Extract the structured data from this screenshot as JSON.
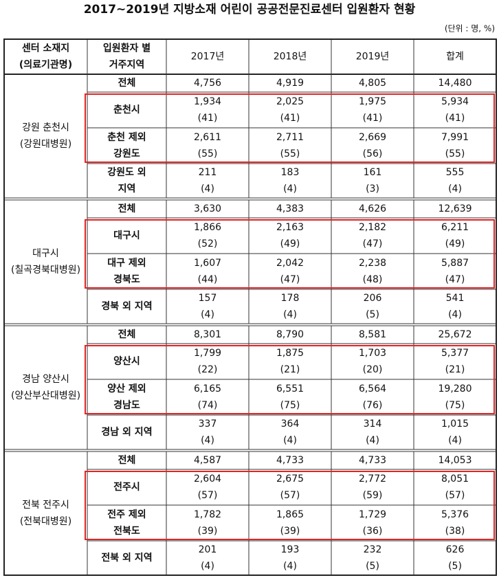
{
  "header": {
    "title": "2017~2019년 지방소재 어린이 공공전문진료센터 입원환자 현황",
    "unit": "(단위 : 명, %)"
  },
  "table": {
    "columns": [
      [
        "센터 소재지",
        "(의료기관명)"
      ],
      [
        "입원환자 별",
        "거주지역"
      ],
      [
        "2017년"
      ],
      [
        "2018년"
      ],
      [
        "2019년"
      ],
      [
        "합계"
      ]
    ],
    "groups": [
      {
        "center": [
          "강원 춘천시",
          "(강원대병원)"
        ],
        "rows": [
          {
            "label": [
              "전체"
            ],
            "cells": [
              [
                "4,756"
              ],
              [
                "4,919"
              ],
              [
                "4,805"
              ],
              [
                "14,480"
              ]
            ]
          },
          {
            "label": [
              "춘천시"
            ],
            "cells": [
              [
                "1,934",
                "(41)"
              ],
              [
                "2,025",
                "(41)"
              ],
              [
                "1,975",
                "(41)"
              ],
              [
                "5,934",
                "(41)"
              ]
            ]
          },
          {
            "label": [
              "춘천 제외",
              "강원도"
            ],
            "cells": [
              [
                "2,611",
                "(55)"
              ],
              [
                "2,711",
                "(55)"
              ],
              [
                "2,669",
                "(56)"
              ],
              [
                "7,991",
                "(55)"
              ]
            ]
          },
          {
            "label": [
              "강원도 외",
              "지역"
            ],
            "cells": [
              [
                "211",
                "(4)"
              ],
              [
                "183",
                "(4)"
              ],
              [
                "161",
                "(3)"
              ],
              [
                "555",
                "(4)"
              ]
            ]
          }
        ]
      },
      {
        "center": [
          "대구시",
          "(칠곡경북대병원)"
        ],
        "rows": [
          {
            "label": [
              "전체"
            ],
            "cells": [
              [
                "3,630"
              ],
              [
                "4,383"
              ],
              [
                "4,626"
              ],
              [
                "12,639"
              ]
            ]
          },
          {
            "label": [
              "대구시"
            ],
            "cells": [
              [
                "1,866",
                "(52)"
              ],
              [
                "2,163",
                "(49)"
              ],
              [
                "2,182",
                "(47)"
              ],
              [
                "6,211",
                "(49)"
              ]
            ]
          },
          {
            "label": [
              "대구 제외",
              "경북도"
            ],
            "cells": [
              [
                "1,607",
                "(44)"
              ],
              [
                "2,042",
                "(47)"
              ],
              [
                "2,238",
                "(48)"
              ],
              [
                "5,887",
                "(47)"
              ]
            ]
          },
          {
            "label": [
              "경북 외 지역"
            ],
            "cells": [
              [
                "157",
                "(4)"
              ],
              [
                "178",
                "(4)"
              ],
              [
                "206",
                "(5)"
              ],
              [
                "541",
                "(4)"
              ]
            ]
          }
        ]
      },
      {
        "center": [
          "경남 양산시",
          "(양산부산대병원)"
        ],
        "rows": [
          {
            "label": [
              "전체"
            ],
            "cells": [
              [
                "8,301"
              ],
              [
                "8,790"
              ],
              [
                "8,581"
              ],
              [
                "25,672"
              ]
            ]
          },
          {
            "label": [
              "양산시"
            ],
            "cells": [
              [
                "1,799",
                "(22)"
              ],
              [
                "1,875",
                "(21)"
              ],
              [
                "1,703",
                "(20)"
              ],
              [
                "5,377",
                "(21)"
              ]
            ]
          },
          {
            "label": [
              "양산 제외",
              "경남도"
            ],
            "cells": [
              [
                "6,165",
                "(74)"
              ],
              [
                "6,551",
                "(75)"
              ],
              [
                "6,564",
                "(76)"
              ],
              [
                "19,280",
                "(75)"
              ]
            ]
          },
          {
            "label": [
              "경남 외 지역"
            ],
            "cells": [
              [
                "337",
                "(4)"
              ],
              [
                "364",
                "(4)"
              ],
              [
                "314",
                "(4)"
              ],
              [
                "1,015",
                "(4)"
              ]
            ]
          }
        ]
      },
      {
        "center": [
          "전북 전주시",
          "(전북대병원)"
        ],
        "rows": [
          {
            "label": [
              "전체"
            ],
            "cells": [
              [
                "4,587"
              ],
              [
                "4,733"
              ],
              [
                "4,733"
              ],
              [
                "14,053"
              ]
            ]
          },
          {
            "label": [
              "전주시"
            ],
            "cells": [
              [
                "2,604",
                "(57)"
              ],
              [
                "2,675",
                "(57)"
              ],
              [
                "2,772",
                "(59)"
              ],
              [
                "8,051",
                "(57)"
              ]
            ]
          },
          {
            "label": [
              "전주 제외",
              "전북도"
            ],
            "cells": [
              [
                "1,782",
                "(39)"
              ],
              [
                "1,865",
                "(39)"
              ],
              [
                "1,729",
                "(36)"
              ],
              [
                "5,376",
                "(38)"
              ]
            ]
          },
          {
            "label": [
              "전북 외 지역"
            ],
            "cells": [
              [
                "201",
                "(4)"
              ],
              [
                "193",
                "(4)"
              ],
              [
                "232",
                "(5)"
              ],
              [
                "626",
                "(5)"
              ]
            ]
          }
        ]
      }
    ]
  }
}
